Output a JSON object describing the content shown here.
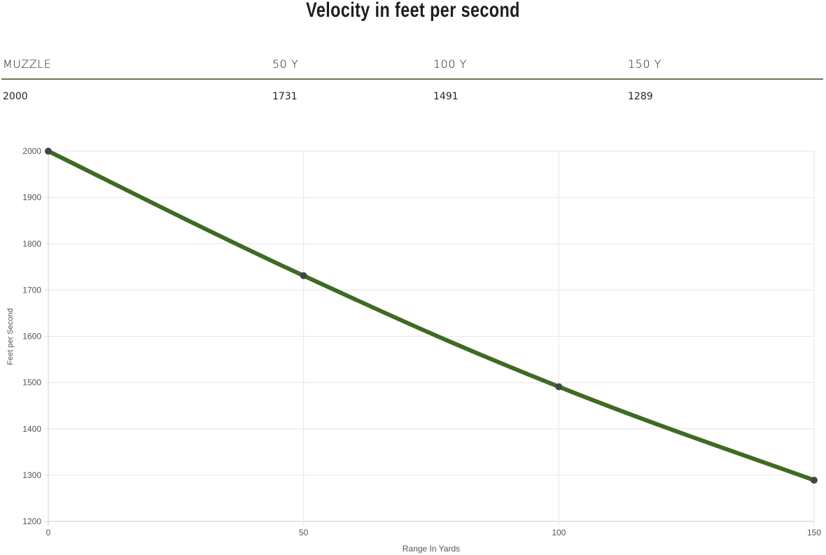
{
  "title": "Velocity in feet per second",
  "table": {
    "headers": [
      "MUZZLE",
      "50 Y",
      "100 Y",
      "150 Y"
    ],
    "values": [
      "2000",
      "1731",
      "1491",
      "1289"
    ]
  },
  "chart_data": {
    "type": "line",
    "title": "",
    "xlabel": "Range In Yards",
    "ylabel": "Feet per Second",
    "x": [
      0,
      50,
      100,
      150
    ],
    "series": [
      {
        "values": [
          2000,
          1731,
          1491,
          1289
        ],
        "color": "#3d6b22",
        "marker_color": "#444444"
      }
    ],
    "xlim": [
      0,
      150
    ],
    "ylim": [
      1200,
      2000
    ],
    "xticks": [
      "0",
      "50",
      "100",
      "150"
    ],
    "yticks": [
      "1200",
      "1300",
      "1400",
      "1500",
      "1600",
      "1700",
      "1800",
      "1900",
      "2000"
    ],
    "grid": true
  }
}
